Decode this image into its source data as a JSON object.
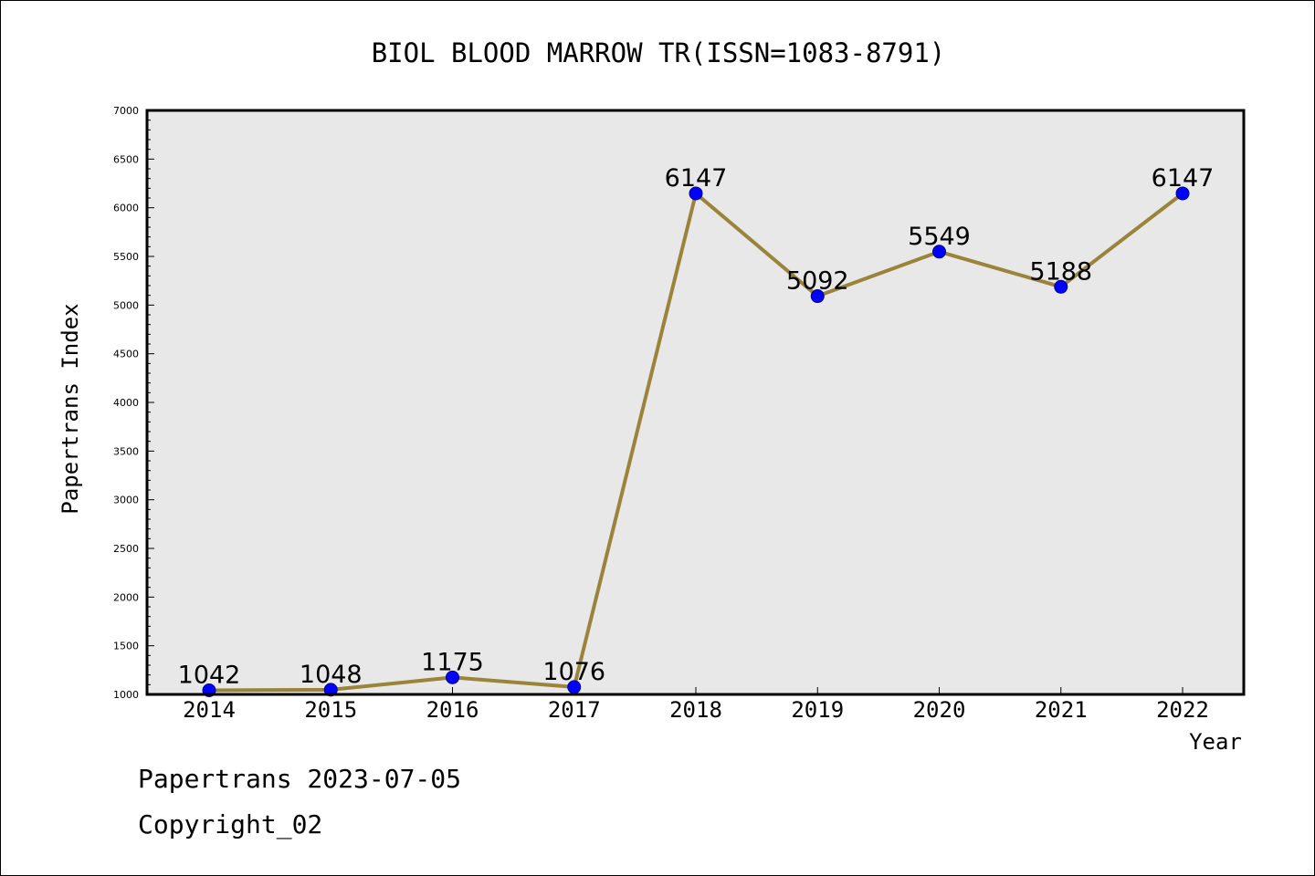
{
  "chart_data": {
    "type": "line",
    "title": "BIOL BLOOD MARROW TR(ISSN=1083-8791)",
    "xlabel": "Year",
    "ylabel": "Papertrans Index",
    "categories": [
      "2014",
      "2015",
      "2016",
      "2017",
      "2018",
      "2019",
      "2020",
      "2021",
      "2022"
    ],
    "values": [
      1042,
      1048,
      1175,
      1076,
      6147,
      5092,
      5549,
      5188,
      6147
    ],
    "data_labels": [
      "1042",
      "1048",
      "1175",
      "1076",
      "6147",
      "5092",
      "5549",
      "5188",
      "6147"
    ],
    "ylim": [
      1000,
      7000
    ],
    "y_ticks": [
      "1000",
      "1500",
      "2000",
      "2500",
      "3000",
      "3500",
      "4000",
      "4500",
      "5000",
      "5500",
      "6000",
      "6500",
      "7000"
    ],
    "grid": false,
    "colors": {
      "line": "#9a843a",
      "marker": "#0000ff",
      "plot_background": "#e8e8e8"
    }
  },
  "footer": {
    "source": "Papertrans 2023-07-05",
    "copyright": "Copyright_02"
  }
}
